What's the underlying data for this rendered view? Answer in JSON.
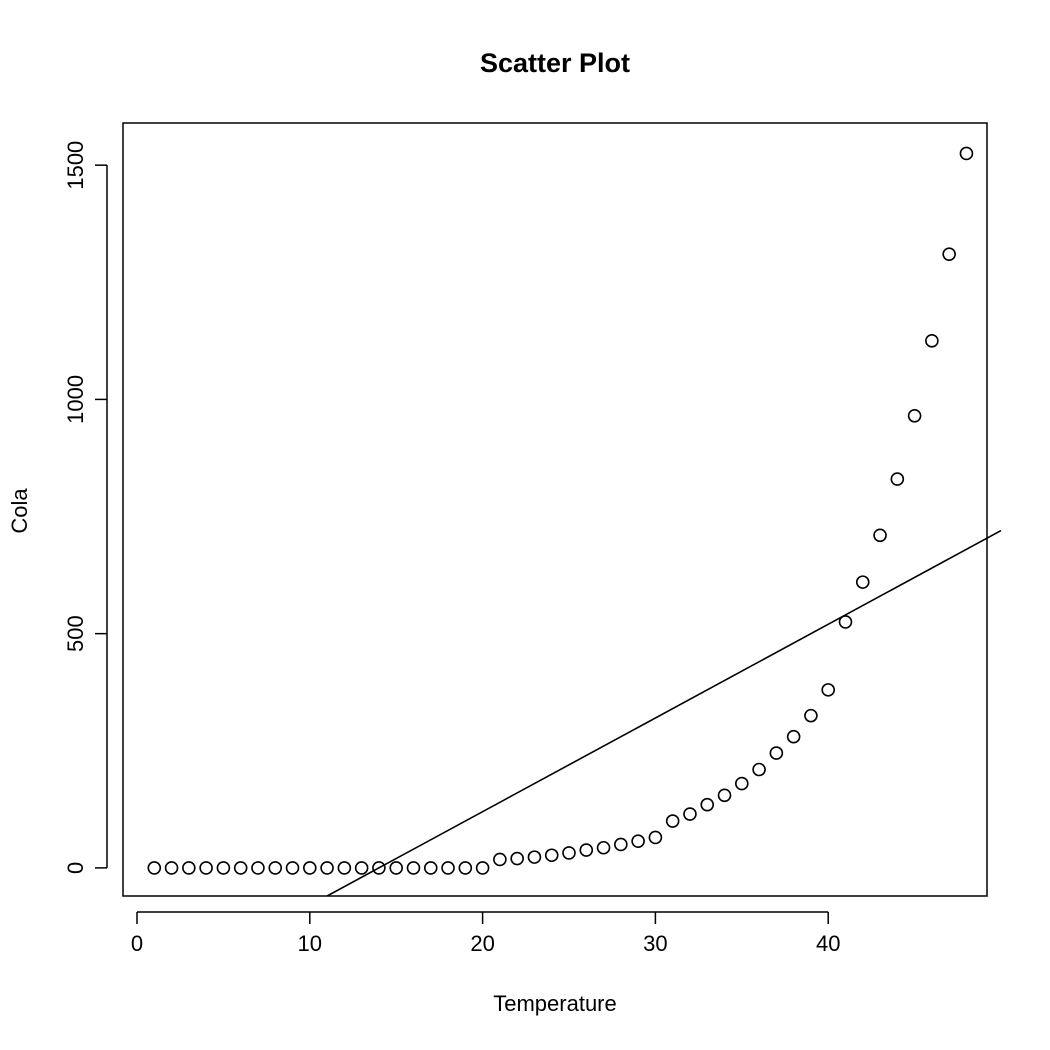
{
  "chart_data": {
    "type": "scatter",
    "title": "Scatter Plot",
    "xlabel": "Temperature",
    "ylabel": "Cola",
    "xlim": [
      0,
      50
    ],
    "ylim": [
      -60,
      1590
    ],
    "xticks": [
      0,
      10,
      20,
      30,
      40
    ],
    "yticks": [
      0,
      500,
      1000,
      1500
    ],
    "xtick_labels": [
      "0",
      "10",
      "20",
      "30",
      "40"
    ],
    "ytick_labels": [
      "0",
      "500",
      "1000",
      "1500"
    ],
    "grid": false,
    "points": {
      "x": [
        1,
        2,
        3,
        4,
        5,
        6,
        7,
        8,
        9,
        10,
        11,
        12,
        13,
        14,
        15,
        16,
        17,
        18,
        19,
        20,
        21,
        22,
        23,
        24,
        25,
        26,
        27,
        28,
        29,
        30,
        31,
        32,
        33,
        34,
        35,
        36,
        37,
        38,
        39,
        40,
        41,
        42,
        43,
        44,
        45,
        46,
        47,
        48
      ],
      "y": [
        0,
        0,
        0,
        0,
        0,
        0,
        0,
        0,
        0,
        0,
        0,
        0,
        0,
        0,
        0,
        0,
        0,
        0,
        0,
        0,
        18,
        20,
        23,
        27,
        32,
        38,
        43,
        50,
        57,
        65,
        100,
        115,
        135,
        155,
        180,
        210,
        245,
        280,
        325,
        380,
        525,
        610,
        710,
        830,
        965,
        1125,
        1310,
        1525
      ]
    },
    "fit_line": {
      "x1": 11,
      "y1": -60,
      "x2": 50,
      "y2": 720
    },
    "colors": {
      "marker": "#000000",
      "line": "#000000",
      "background": "#ffffff"
    }
  }
}
